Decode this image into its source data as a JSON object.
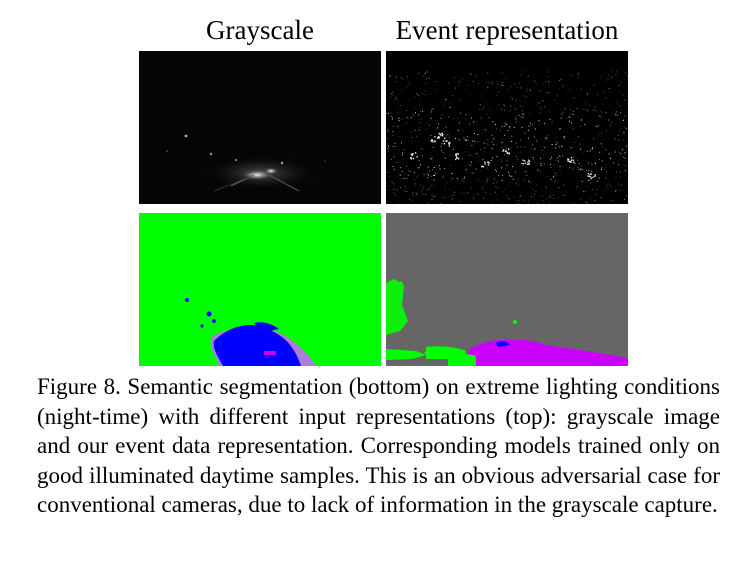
{
  "figure": {
    "columns": {
      "left_title": "Grayscale",
      "right_title": "Event representation"
    },
    "caption": "Figure 8. Semantic segmentation (bottom) on extreme lighting conditions (night-time) with different input representations (top): grayscale image and our event data representation. Corresponding models trained only on good illuminated daytime samples. This is an obvious adversarial case for conventional cameras, due to lack of information in the grayscale capture.",
    "segmentation_colors": {
      "green": "#00ff00",
      "gray": "#666666",
      "blue": "#0000ff",
      "magenta": "#cc00ff"
    }
  }
}
